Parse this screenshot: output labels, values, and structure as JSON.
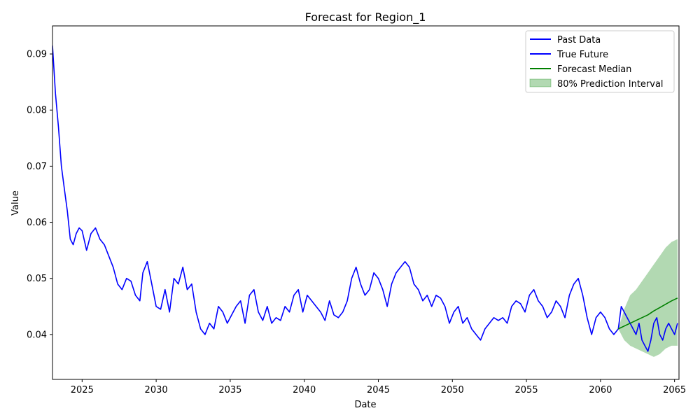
{
  "chart_data": {
    "type": "line",
    "title": "Forecast for Region_1",
    "xlabel": "Date",
    "ylabel": "Value",
    "xlim": [
      2023.0,
      2065.3
    ],
    "ylim": [
      0.032,
      0.095
    ],
    "x_ticks": [
      2025,
      2030,
      2035,
      2040,
      2045,
      2050,
      2055,
      2060,
      2065
    ],
    "y_ticks": [
      0.04,
      0.05,
      0.06,
      0.07,
      0.08,
      0.09
    ],
    "legend_position": "top-right",
    "grid": false,
    "colors": {
      "past": "#0000ff",
      "true_future": "#0000ff",
      "median": "#008000",
      "interval": "#008000"
    },
    "series": [
      {
        "name": "Past Data",
        "color": "#0000ff",
        "x": [
          2023.0,
          2023.2,
          2023.4,
          2023.6,
          2023.8,
          2024.0,
          2024.2,
          2024.4,
          2024.6,
          2024.8,
          2025.0,
          2025.3,
          2025.6,
          2025.9,
          2026.2,
          2026.5,
          2026.8,
          2027.1,
          2027.4,
          2027.7,
          2028.0,
          2028.3,
          2028.6,
          2028.9,
          2029.1,
          2029.4,
          2029.7,
          2030.0,
          2030.3,
          2030.6,
          2030.9,
          2031.2,
          2031.5,
          2031.8,
          2032.1,
          2032.4,
          2032.7,
          2033.0,
          2033.3,
          2033.6,
          2033.9,
          2034.2,
          2034.5,
          2034.8,
          2035.1,
          2035.4,
          2035.7,
          2036.0,
          2036.3,
          2036.6,
          2036.9,
          2037.2,
          2037.5,
          2037.8,
          2038.1,
          2038.4,
          2038.7,
          2039.0,
          2039.3,
          2039.6,
          2039.9,
          2040.2,
          2040.5,
          2040.8,
          2041.1,
          2041.4,
          2041.7,
          2042.0,
          2042.3,
          2042.6,
          2042.9,
          2043.2,
          2043.5,
          2043.8,
          2044.1,
          2044.4,
          2044.7,
          2045.0,
          2045.3,
          2045.6,
          2045.9,
          2046.2,
          2046.5,
          2046.8,
          2047.1,
          2047.4,
          2047.7,
          2048.0,
          2048.3,
          2048.6,
          2048.9,
          2049.2,
          2049.5,
          2049.8,
          2050.1,
          2050.4,
          2050.7,
          2051.0,
          2051.3,
          2051.6,
          2051.9,
          2052.2,
          2052.5,
          2052.8,
          2053.1,
          2053.4,
          2053.7,
          2054.0,
          2054.3,
          2054.6,
          2054.9,
          2055.2,
          2055.5,
          2055.8,
          2056.1,
          2056.4,
          2056.7,
          2057.0,
          2057.3,
          2057.6,
          2057.9,
          2058.2,
          2058.5,
          2058.8,
          2059.1,
          2059.4,
          2059.7,
          2060.0,
          2060.3,
          2060.6,
          2060.9,
          2061.2
        ],
        "y": [
          0.0915,
          0.083,
          0.077,
          0.07,
          0.066,
          0.062,
          0.057,
          0.056,
          0.058,
          0.059,
          0.0585,
          0.055,
          0.058,
          0.059,
          0.057,
          0.056,
          0.054,
          0.052,
          0.049,
          0.048,
          0.05,
          0.0495,
          0.047,
          0.046,
          0.051,
          0.053,
          0.049,
          0.045,
          0.0445,
          0.048,
          0.044,
          0.05,
          0.049,
          0.052,
          0.048,
          0.049,
          0.044,
          0.041,
          0.04,
          0.042,
          0.041,
          0.045,
          0.044,
          0.042,
          0.0435,
          0.045,
          0.046,
          0.042,
          0.047,
          0.048,
          0.044,
          0.0425,
          0.045,
          0.042,
          0.043,
          0.0425,
          0.045,
          0.044,
          0.047,
          0.048,
          0.044,
          0.047,
          0.046,
          0.045,
          0.044,
          0.0425,
          0.046,
          0.0435,
          0.043,
          0.044,
          0.046,
          0.05,
          0.052,
          0.049,
          0.047,
          0.048,
          0.051,
          0.05,
          0.048,
          0.045,
          0.049,
          0.051,
          0.052,
          0.053,
          0.052,
          0.049,
          0.048,
          0.046,
          0.047,
          0.045,
          0.047,
          0.0465,
          0.045,
          0.042,
          0.044,
          0.045,
          0.042,
          0.043,
          0.041,
          0.04,
          0.039,
          0.041,
          0.042,
          0.043,
          0.0425,
          0.043,
          0.042,
          0.045,
          0.046,
          0.0455,
          0.044,
          0.047,
          0.048,
          0.046,
          0.045,
          0.043,
          0.044,
          0.046,
          0.045,
          0.043,
          0.047,
          0.049,
          0.05,
          0.047,
          0.043,
          0.04,
          0.043,
          0.044,
          0.043,
          0.041,
          0.04,
          0.041
        ]
      },
      {
        "name": "True Future",
        "color": "#0000ff",
        "x": [
          2061.2,
          2061.4,
          2061.6,
          2061.8,
          2062.0,
          2062.2,
          2062.4,
          2062.6,
          2062.8,
          2063.0,
          2063.2,
          2063.4,
          2063.6,
          2063.8,
          2064.0,
          2064.2,
          2064.4,
          2064.6,
          2064.8,
          2065.0,
          2065.2
        ],
        "y": [
          0.041,
          0.045,
          0.044,
          0.043,
          0.042,
          0.041,
          0.04,
          0.042,
          0.039,
          0.038,
          0.037,
          0.039,
          0.042,
          0.043,
          0.04,
          0.039,
          0.041,
          0.042,
          0.041,
          0.04,
          0.042
        ]
      },
      {
        "name": "Forecast Median",
        "color": "#008000",
        "x": [
          2061.2,
          2061.6,
          2062.0,
          2062.4,
          2062.8,
          2063.2,
          2063.6,
          2064.0,
          2064.4,
          2064.8,
          2065.2
        ],
        "y": [
          0.041,
          0.0415,
          0.042,
          0.0425,
          0.043,
          0.0435,
          0.0442,
          0.0448,
          0.0454,
          0.046,
          0.0465
        ]
      }
    ],
    "interval": {
      "name": "80% Prediction Interval",
      "color": "#008000",
      "x": [
        2061.2,
        2061.6,
        2062.0,
        2062.4,
        2062.8,
        2063.2,
        2063.6,
        2064.0,
        2064.4,
        2064.8,
        2065.2
      ],
      "lower": [
        0.041,
        0.039,
        0.038,
        0.0375,
        0.037,
        0.0365,
        0.036,
        0.0365,
        0.0375,
        0.038,
        0.038
      ],
      "upper": [
        0.041,
        0.0445,
        0.047,
        0.048,
        0.0495,
        0.051,
        0.0525,
        0.054,
        0.0555,
        0.0565,
        0.057
      ]
    },
    "legend": [
      "Past Data",
      "True Future",
      "Forecast Median",
      "80% Prediction Interval"
    ]
  }
}
